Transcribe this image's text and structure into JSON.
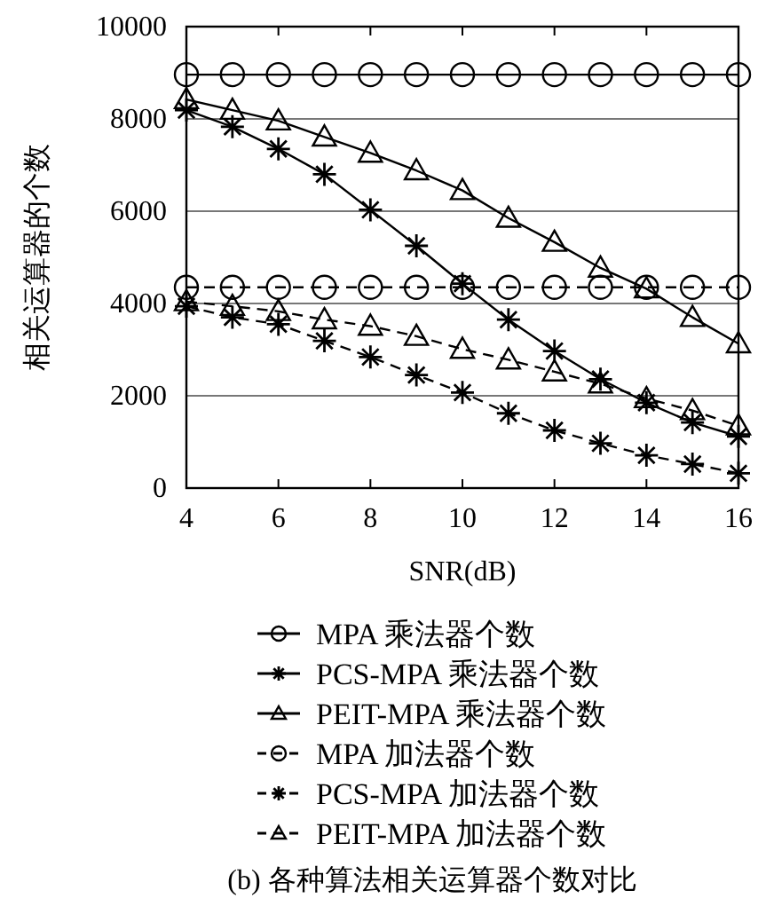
{
  "chart_data": {
    "type": "line",
    "xlabel": "SNR(dB)",
    "ylabel": "相关运算器的个数",
    "x": [
      4,
      5,
      6,
      7,
      8,
      9,
      10,
      11,
      12,
      13,
      14,
      15,
      16
    ],
    "xlim": [
      4,
      16
    ],
    "xticks": [
      4,
      6,
      8,
      10,
      12,
      14,
      16
    ],
    "ylim": [
      0,
      10000
    ],
    "yticks": [
      0,
      2000,
      4000,
      6000,
      8000,
      10000
    ],
    "grid": "y",
    "legend": "bottom",
    "series": [
      {
        "name": "MPA 乘法器个数",
        "color": "#000000",
        "marker": "circle",
        "line_style": "solid",
        "values": [
          8960,
          8960,
          8960,
          8960,
          8960,
          8960,
          8960,
          8960,
          8960,
          8960,
          8960,
          8960,
          8960
        ]
      },
      {
        "name": "PCS-MPA 乘法器个数",
        "color": "#000000",
        "marker": "cross",
        "line_style": "solid",
        "values": [
          8190,
          7830,
          7350,
          6800,
          6030,
          5250,
          4430,
          3650,
          2970,
          2360,
          1850,
          1420,
          1120
        ]
      },
      {
        "name": "PEIT-MPA 乘法器个数",
        "color": "#000000",
        "marker": "triangle",
        "line_style": "solid",
        "values": [
          8420,
          8190,
          7960,
          7610,
          7260,
          6880,
          6450,
          5850,
          5330,
          4770,
          4320,
          3700,
          3130
        ]
      },
      {
        "name": "MPA 加法器个数",
        "color": "#000000",
        "marker": "circle",
        "line_style": "dashed",
        "values": [
          4350,
          4350,
          4350,
          4350,
          4350,
          4350,
          4350,
          4350,
          4350,
          4350,
          4350,
          4350,
          4350
        ]
      },
      {
        "name": "PCS-MPA 加法器个数",
        "color": "#000000",
        "marker": "cross",
        "line_style": "dashed",
        "values": [
          3940,
          3700,
          3550,
          3190,
          2840,
          2450,
          2070,
          1620,
          1250,
          970,
          710,
          520,
          320
        ]
      },
      {
        "name": "PEIT-MPA 加法器个数",
        "color": "#000000",
        "marker": "triangle",
        "line_style": "dashed",
        "values": [
          4040,
          3940,
          3830,
          3650,
          3510,
          3290,
          3010,
          2780,
          2520,
          2260,
          1940,
          1680,
          1350
        ]
      }
    ],
    "annotations": [
      "(b) 各种算法相关运算器个数对比"
    ]
  }
}
